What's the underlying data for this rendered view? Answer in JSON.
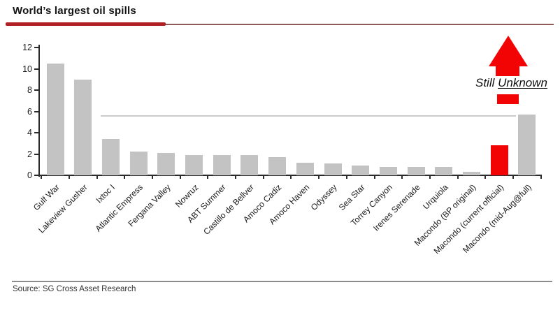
{
  "header": {
    "title": "World’s largest oil spills"
  },
  "footer": {
    "source": "Source: SG Cross Asset Research"
  },
  "annotation": {
    "prefix": "Still ",
    "underlined": "Unknown"
  },
  "colors": {
    "bar_gray": "#c3c3c3",
    "bar_red": "#f30404",
    "title_underline_thick": "#b12023",
    "title_underline_thin": "#8f5a58",
    "reference_line": "#cbcbcb",
    "axis": "#2b2b2b"
  },
  "chart_data": {
    "type": "bar",
    "title": "World’s largest oil spills",
    "categories": [
      "Gulf War",
      "Lakeview Gusher",
      "Ixtoc I",
      "Atlantic Empress",
      "Fergana Valley",
      "Nowruz",
      "ABT Summer",
      "Castillo de Bellver",
      "Amoco Cadiz",
      "Amoco Haven",
      "Odyssey",
      "Sea Star",
      "Torrey Canyon",
      "Irenes Serenade",
      "Urquiola",
      "Macondo (BP original)",
      "Macondo (current official)",
      "Macondo (mid-Aug@full)"
    ],
    "values": [
      10.5,
      9.0,
      3.4,
      2.2,
      2.1,
      1.9,
      1.9,
      1.9,
      1.7,
      1.2,
      1.1,
      0.9,
      0.8,
      0.8,
      0.8,
      0.3,
      2.8,
      5.7
    ],
    "bar_colors": [
      "gray",
      "gray",
      "gray",
      "gray",
      "gray",
      "gray",
      "gray",
      "gray",
      "gray",
      "gray",
      "gray",
      "gray",
      "gray",
      "gray",
      "gray",
      "gray",
      "red",
      "gray"
    ],
    "highlight_category": "Macondo (current official)",
    "annotation_text": "Still Unknown",
    "xlabel": "",
    "ylabel": "",
    "ylim": [
      0,
      12
    ],
    "yticks": [
      0,
      2,
      4,
      6,
      8,
      10,
      12
    ],
    "reference_line_y": 5.6,
    "grid": false,
    "legend": false
  }
}
